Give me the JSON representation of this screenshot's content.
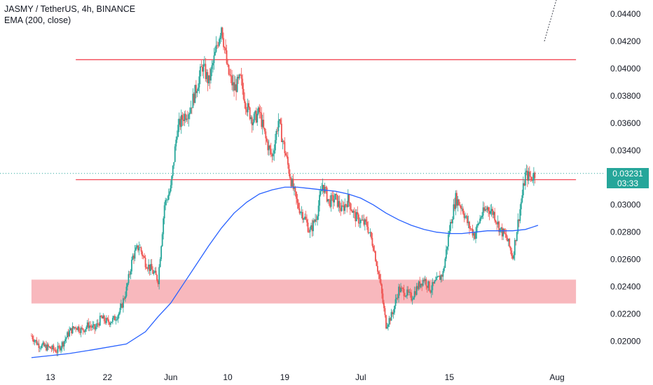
{
  "header": {
    "symbol_line": "JASMY / TetherUS, 4h, BINANCE",
    "indicator_line": "EMA (200, close)"
  },
  "colors": {
    "up": "#26a69a",
    "down": "#ef5350",
    "ema": "#2962ff",
    "level_line": "#f23645",
    "zone_fill": "#f8b8bd",
    "current_price_line": "#26a69a",
    "axis_text": "#131722"
  },
  "price_label": {
    "value": "0.03231",
    "countdown": "03:33"
  },
  "chart_data": {
    "type": "candlestick",
    "symbol": "JASMY / TetherUS",
    "timeframe": "4h",
    "exchange": "BINANCE",
    "y_axis": {
      "min": 0.0188,
      "max": 0.0451,
      "ticks": [
        "0.02000",
        "0.02200",
        "0.02400",
        "0.02600",
        "0.02800",
        "0.03000",
        "0.03200",
        "0.03400",
        "0.03600",
        "0.03800",
        "0.04000",
        "0.04200",
        "0.04400"
      ]
    },
    "x_axis": {
      "start": "2024-05-10",
      "end": "2024-08-01",
      "ticks": [
        {
          "date": "2024-05-13",
          "label": "13"
        },
        {
          "date": "2024-05-22",
          "label": "22"
        },
        {
          "date": "2024-06-01",
          "label": "Jun"
        },
        {
          "date": "2024-06-10",
          "label": "10"
        },
        {
          "date": "2024-06-19",
          "label": "19"
        },
        {
          "date": "2024-07-01",
          "label": "Jul"
        },
        {
          "date": "2024-07-15",
          "label": "15"
        },
        {
          "date": "2024-08-01",
          "label": "Aug"
        }
      ]
    },
    "close_path": [
      [
        "2024-05-10",
        0.0204
      ],
      [
        "2024-05-11",
        0.0198
      ],
      [
        "2024-05-12",
        0.0196
      ],
      [
        "2024-05-13",
        0.0195
      ],
      [
        "2024-05-14",
        0.0193
      ],
      [
        "2024-05-15",
        0.0199
      ],
      [
        "2024-05-16",
        0.0207
      ],
      [
        "2024-05-17",
        0.0211
      ],
      [
        "2024-05-18",
        0.0208
      ],
      [
        "2024-05-19",
        0.0212
      ],
      [
        "2024-05-20",
        0.0209
      ],
      [
        "2024-05-21",
        0.0217
      ],
      [
        "2024-05-22",
        0.0214
      ],
      [
        "2024-05-23",
        0.0216
      ],
      [
        "2024-05-24",
        0.0222
      ],
      [
        "2024-05-25",
        0.0238
      ],
      [
        "2024-05-26",
        0.0262
      ],
      [
        "2024-05-27",
        0.027
      ],
      [
        "2024-05-28",
        0.0258
      ],
      [
        "2024-05-29",
        0.0252
      ],
      [
        "2024-05-30",
        0.0245
      ],
      [
        "2024-05-31",
        0.03
      ],
      [
        "2024-06-01",
        0.0312
      ],
      [
        "2024-06-02",
        0.0355
      ],
      [
        "2024-06-03",
        0.0365
      ],
      [
        "2024-06-04",
        0.037
      ],
      [
        "2024-06-05",
        0.0385
      ],
      [
        "2024-06-06",
        0.0402
      ],
      [
        "2024-06-07",
        0.039
      ],
      [
        "2024-06-08",
        0.041
      ],
      [
        "2024-06-09",
        0.0432
      ],
      [
        "2024-06-10",
        0.0398
      ],
      [
        "2024-06-11",
        0.0385
      ],
      [
        "2024-06-12",
        0.0392
      ],
      [
        "2024-06-13",
        0.0372
      ],
      [
        "2024-06-14",
        0.0362
      ],
      [
        "2024-06-15",
        0.0368
      ],
      [
        "2024-06-16",
        0.0348
      ],
      [
        "2024-06-17",
        0.0335
      ],
      [
        "2024-06-18",
        0.0362
      ],
      [
        "2024-06-19",
        0.034
      ],
      [
        "2024-06-20",
        0.0318
      ],
      [
        "2024-06-21",
        0.03
      ],
      [
        "2024-06-22",
        0.0292
      ],
      [
        "2024-06-23",
        0.028
      ],
      [
        "2024-06-24",
        0.0292
      ],
      [
        "2024-06-25",
        0.0315
      ],
      [
        "2024-06-26",
        0.0302
      ],
      [
        "2024-06-27",
        0.0305
      ],
      [
        "2024-06-28",
        0.0296
      ],
      [
        "2024-06-29",
        0.0304
      ],
      [
        "2024-06-30",
        0.0292
      ],
      [
        "2024-07-01",
        0.0288
      ],
      [
        "2024-07-02",
        0.0285
      ],
      [
        "2024-07-03",
        0.027
      ],
      [
        "2024-07-04",
        0.0245
      ],
      [
        "2024-07-05",
        0.0212
      ],
      [
        "2024-07-06",
        0.022
      ],
      [
        "2024-07-07",
        0.0238
      ],
      [
        "2024-07-08",
        0.0236
      ],
      [
        "2024-07-09",
        0.0232
      ],
      [
        "2024-07-10",
        0.024
      ],
      [
        "2024-07-11",
        0.0246
      ],
      [
        "2024-07-12",
        0.0238
      ],
      [
        "2024-07-13",
        0.0244
      ],
      [
        "2024-07-14",
        0.025
      ],
      [
        "2024-07-15",
        0.0282
      ],
      [
        "2024-07-16",
        0.0305
      ],
      [
        "2024-07-17",
        0.0298
      ],
      [
        "2024-07-18",
        0.0285
      ],
      [
        "2024-07-19",
        0.0278
      ],
      [
        "2024-07-20",
        0.0292
      ],
      [
        "2024-07-21",
        0.0298
      ],
      [
        "2024-07-22",
        0.0294
      ],
      [
        "2024-07-23",
        0.0282
      ],
      [
        "2024-07-24",
        0.0276
      ],
      [
        "2024-07-25",
        0.0262
      ],
      [
        "2024-07-26",
        0.0292
      ],
      [
        "2024-07-27",
        0.0322
      ],
      [
        "2024-07-28",
        0.032
      ],
      [
        "2024-07-28T12:00",
        0.03231
      ]
    ],
    "ema_200": [
      [
        "2024-05-10",
        0.0188
      ],
      [
        "2024-05-13",
        0.01895
      ],
      [
        "2024-05-16",
        0.0191
      ],
      [
        "2024-05-20",
        0.0194
      ],
      [
        "2024-05-25",
        0.0198
      ],
      [
        "2024-05-28",
        0.0207
      ],
      [
        "2024-05-30",
        0.0218
      ],
      [
        "2024-06-01",
        0.0228
      ],
      [
        "2024-06-03",
        0.0242
      ],
      [
        "2024-06-05",
        0.0256
      ],
      [
        "2024-06-07",
        0.027
      ],
      [
        "2024-06-09",
        0.0283
      ],
      [
        "2024-06-11",
        0.0294
      ],
      [
        "2024-06-13",
        0.0302
      ],
      [
        "2024-06-15",
        0.0308
      ],
      [
        "2024-06-17",
        0.0311
      ],
      [
        "2024-06-19",
        0.0313
      ],
      [
        "2024-06-21",
        0.0313
      ],
      [
        "2024-06-23",
        0.0312
      ],
      [
        "2024-06-25",
        0.0311
      ],
      [
        "2024-06-27",
        0.031
      ],
      [
        "2024-06-29",
        0.0308
      ],
      [
        "2024-07-01",
        0.0305
      ],
      [
        "2024-07-03",
        0.03
      ],
      [
        "2024-07-05",
        0.0294
      ],
      [
        "2024-07-07",
        0.0289
      ],
      [
        "2024-07-09",
        0.0285
      ],
      [
        "2024-07-11",
        0.0282
      ],
      [
        "2024-07-13",
        0.028
      ],
      [
        "2024-07-15",
        0.0279
      ],
      [
        "2024-07-17",
        0.0279
      ],
      [
        "2024-07-19",
        0.028
      ],
      [
        "2024-07-21",
        0.0281
      ],
      [
        "2024-07-23",
        0.0281
      ],
      [
        "2024-07-25",
        0.0281
      ],
      [
        "2024-07-27",
        0.0282
      ],
      [
        "2024-07-29",
        0.0285
      ]
    ],
    "annotations": {
      "resistance_line": {
        "price": 0.04065,
        "from": "2024-05-17",
        "to": "2024-08-04"
      },
      "support_line": {
        "price": 0.03185,
        "from": "2024-05-17",
        "to": "2024-08-04"
      },
      "demand_zone": {
        "low": 0.02277,
        "high": 0.02452,
        "from": "2024-05-10",
        "to": "2024-08-04"
      },
      "current_price": 0.03231,
      "dotted_trend": {
        "from": [
          "2024-07-30",
          0.042
        ],
        "to": [
          "2024-08-01",
          0.0452
        ]
      }
    }
  }
}
